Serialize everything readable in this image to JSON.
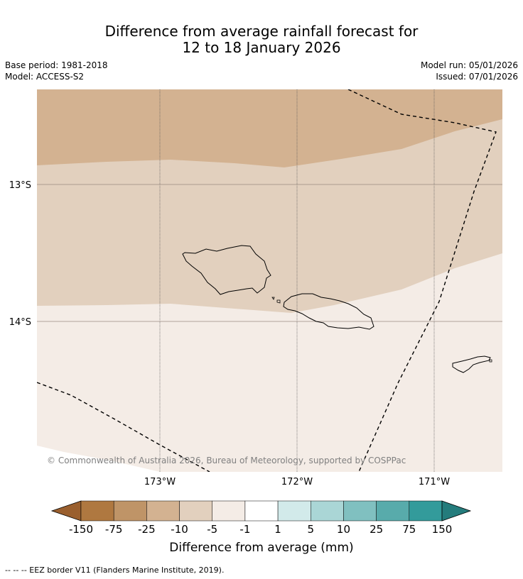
{
  "title_line1": "Difference from average rainfall forecast for",
  "title_line2": "12 to 18 January 2026",
  "base_period": "Base period: 1981-2018",
  "model": "Model: ACCESS-S2",
  "model_run": "Model run: 05/01/2026",
  "issued": "Issued: 07/01/2026",
  "lat_labels": [
    "13°S",
    "14°S"
  ],
  "lon_labels": [
    "173°W",
    "172°W",
    "171°W"
  ],
  "copyright": "© Commonwealth of Australia 2026, Bureau of Meteorology, supported by COSPPac",
  "colorbar": {
    "title": "Difference from average (mm)",
    "ticks": [
      "-150",
      "-75",
      "-25",
      "-10",
      "-5",
      "-1",
      "1",
      "5",
      "10",
      "25",
      "75",
      "150"
    ],
    "colors": [
      "#9a5f2e",
      "#af7840",
      "#bf9467",
      "#d3b291",
      "#e2d0be",
      "#f4ece6",
      "#ffffff",
      "#d2eaea",
      "#aad6d6",
      "#80c0c0",
      "#58abab",
      "#339b9b",
      "#247c7c"
    ]
  },
  "legend_footnote": "--  --  -- EEZ border V11 (Flanders Marine Institute, 2019)."
}
